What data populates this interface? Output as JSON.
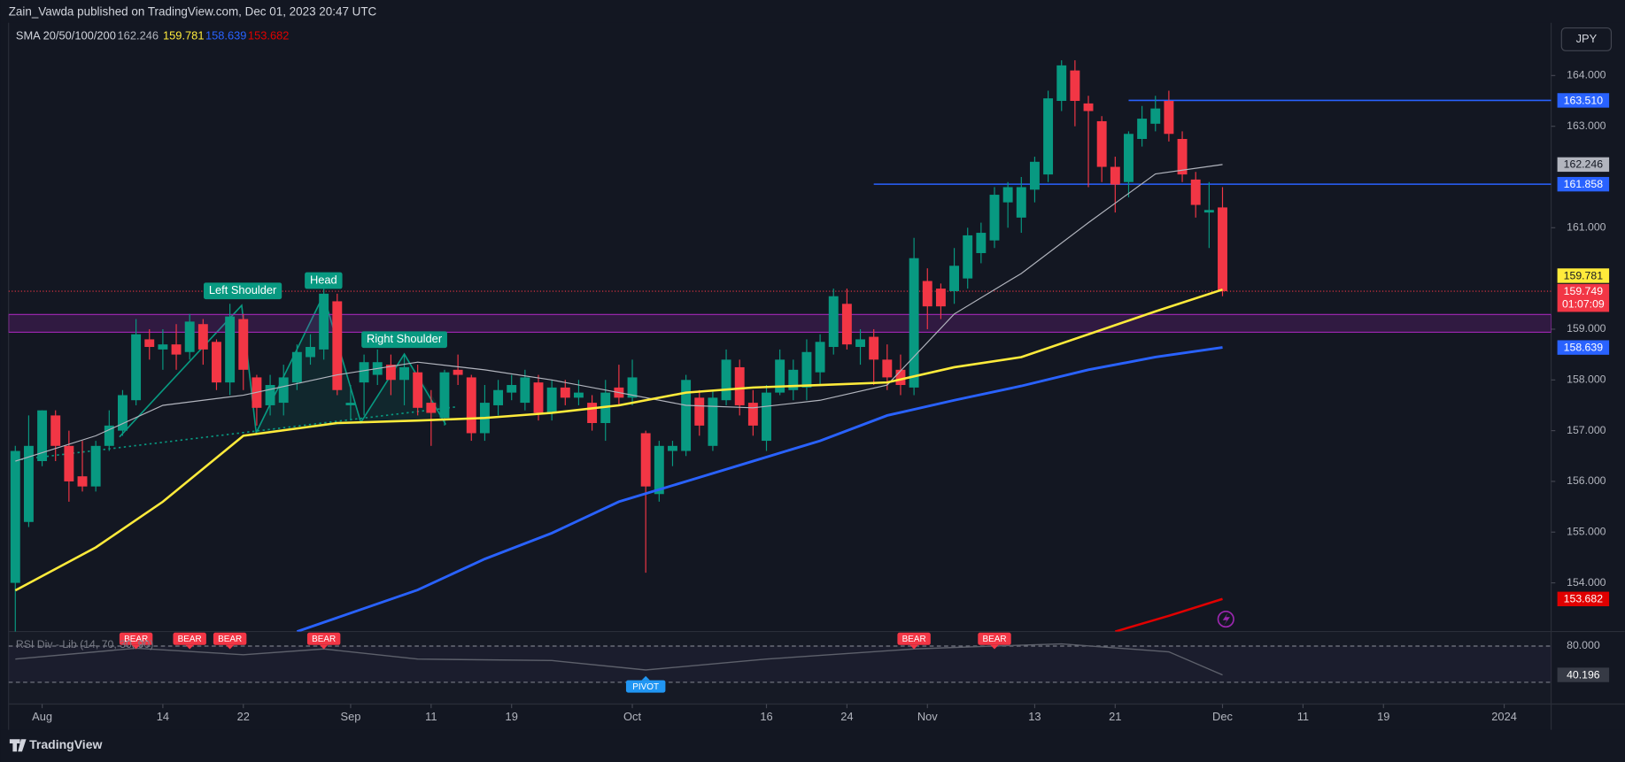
{
  "header": {
    "publisher": "Zain_Vawda published on TradingView.com, Dec 01, 2023 20:47 UTC",
    "currency": "JPY",
    "footer": "TradingView"
  },
  "chart_data": {
    "type": "candlestick",
    "indicator_label": "SMA 20/50/100/200",
    "up_color": "#089981",
    "down_color": "#f23645",
    "x": [
      "2023-07-28",
      "2023-07-31",
      "2023-08-01",
      "2023-08-02",
      "2023-08-03",
      "2023-08-04",
      "2023-08-07",
      "2023-08-08",
      "2023-08-09",
      "2023-08-10",
      "2023-08-11",
      "2023-08-14",
      "2023-08-15",
      "2023-08-16",
      "2023-08-17",
      "2023-08-18",
      "2023-08-21",
      "2023-08-22",
      "2023-08-23",
      "2023-08-24",
      "2023-08-25",
      "2023-08-28",
      "2023-08-29",
      "2023-08-30",
      "2023-08-31",
      "2023-09-01",
      "2023-09-04",
      "2023-09-05",
      "2023-09-06",
      "2023-09-07",
      "2023-09-08",
      "2023-09-11",
      "2023-09-12",
      "2023-09-13",
      "2023-09-14",
      "2023-09-15",
      "2023-09-18",
      "2023-09-19",
      "2023-09-20",
      "2023-09-21",
      "2023-09-22",
      "2023-09-25",
      "2023-09-26",
      "2023-09-27",
      "2023-09-28",
      "2023-09-29",
      "2023-10-02",
      "2023-10-03",
      "2023-10-04",
      "2023-10-05",
      "2023-10-06",
      "2023-10-09",
      "2023-10-10",
      "2023-10-11",
      "2023-10-12",
      "2023-10-13",
      "2023-10-16",
      "2023-10-17",
      "2023-10-18",
      "2023-10-19",
      "2023-10-20",
      "2023-10-23",
      "2023-10-24",
      "2023-10-25",
      "2023-10-26",
      "2023-10-27",
      "2023-10-30",
      "2023-10-31",
      "2023-11-01",
      "2023-11-02",
      "2023-11-03",
      "2023-11-06",
      "2023-11-07",
      "2023-11-08",
      "2023-11-09",
      "2023-11-10",
      "2023-11-13",
      "2023-11-14",
      "2023-11-15",
      "2023-11-16",
      "2023-11-17",
      "2023-11-20",
      "2023-11-21",
      "2023-11-22",
      "2023-11-23",
      "2023-11-24",
      "2023-11-27",
      "2023-11-28",
      "2023-11-29",
      "2023-11-30",
      "2023-12-01"
    ],
    "open": [
      154.0,
      155.2,
      156.4,
      157.3,
      156.7,
      156.1,
      155.9,
      156.7,
      157.0,
      157.6,
      158.8,
      158.6,
      158.7,
      158.55,
      159.1,
      158.75,
      157.95,
      159.2,
      158.05,
      157.5,
      157.55,
      157.95,
      158.45,
      158.6,
      159.55,
      157.5,
      157.95,
      158.1,
      158.3,
      158.0,
      158.15,
      157.55,
      157.25,
      158.2,
      158.05,
      156.95,
      157.5,
      157.75,
      157.55,
      157.95,
      157.35,
      157.85,
      157.65,
      157.55,
      157.15,
      157.85,
      157.65,
      156.95,
      155.75,
      156.6,
      156.6,
      157.65,
      156.7,
      157.6,
      158.25,
      157.55,
      156.8,
      157.75,
      157.8,
      157.85,
      158.15,
      158.65,
      159.5,
      158.65,
      158.85,
      158.4,
      158.2,
      157.85,
      159.95,
      159.8,
      159.75,
      160.0,
      160.5,
      160.75,
      161.5,
      161.2,
      161.75,
      162.05,
      163.5,
      164.1,
      163.45,
      163.1,
      162.2,
      161.9,
      162.75,
      163.05,
      163.5,
      162.75,
      161.95,
      161.3,
      161.4
    ],
    "high": [
      156.7,
      157.3,
      157.4,
      157.4,
      157.0,
      156.8,
      156.8,
      157.4,
      157.8,
      159.2,
      159.0,
      159.0,
      159.1,
      159.3,
      159.2,
      158.8,
      159.5,
      159.3,
      158.1,
      158.1,
      158.3,
      158.7,
      158.9,
      159.8,
      159.7,
      157.9,
      158.5,
      158.6,
      158.5,
      158.5,
      158.3,
      157.8,
      158.2,
      158.5,
      158.1,
      157.9,
      158.0,
      158.1,
      158.2,
      158.1,
      158.0,
      158.0,
      158.0,
      157.7,
      158.0,
      158.3,
      158.4,
      157.0,
      156.8,
      156.8,
      158.1,
      157.8,
      157.8,
      158.6,
      158.4,
      157.8,
      157.9,
      158.6,
      158.4,
      158.8,
      158.9,
      159.8,
      159.8,
      159.0,
      159.0,
      158.7,
      158.5,
      160.8,
      160.2,
      159.9,
      160.6,
      161.0,
      161.1,
      161.8,
      161.9,
      162.0,
      162.4,
      163.7,
      164.3,
      164.3,
      163.6,
      163.2,
      162.4,
      162.9,
      163.4,
      163.6,
      163.7,
      162.9,
      162.1,
      161.9,
      161.8
    ],
    "low": [
      153.0,
      155.1,
      156.3,
      156.4,
      155.6,
      155.8,
      155.8,
      156.6,
      156.9,
      157.5,
      158.4,
      158.2,
      158.2,
      158.4,
      158.3,
      157.8,
      157.7,
      157.8,
      157.1,
      157.3,
      157.3,
      157.8,
      158.3,
      158.4,
      157.7,
      157.2,
      157.3,
      157.9,
      157.7,
      157.5,
      157.3,
      156.7,
      157.1,
      157.9,
      156.8,
      156.8,
      157.3,
      157.6,
      157.4,
      157.2,
      157.2,
      157.5,
      157.5,
      157.0,
      156.8,
      157.5,
      157.5,
      154.2,
      155.6,
      156.3,
      156.5,
      156.9,
      156.6,
      157.5,
      157.3,
      156.9,
      156.6,
      157.7,
      157.6,
      157.6,
      157.9,
      158.5,
      158.6,
      158.3,
      157.9,
      157.8,
      157.7,
      157.7,
      159.0,
      159.2,
      159.5,
      159.8,
      160.3,
      160.6,
      161.0,
      160.9,
      161.5,
      161.9,
      163.3,
      163.0,
      161.8,
      161.9,
      161.3,
      161.6,
      162.6,
      162.9,
      162.7,
      161.9,
      161.2,
      160.6,
      159.65
    ],
    "close": [
      156.6,
      156.7,
      157.4,
      156.7,
      156.0,
      155.9,
      156.7,
      157.1,
      157.7,
      158.9,
      158.65,
      158.7,
      158.5,
      159.15,
      158.6,
      157.95,
      159.25,
      158.2,
      157.45,
      157.9,
      158.05,
      158.55,
      158.65,
      159.7,
      157.8,
      157.55,
      158.35,
      158.35,
      158.0,
      158.25,
      157.45,
      157.35,
      158.15,
      158.1,
      156.95,
      157.55,
      157.8,
      157.9,
      158.05,
      157.35,
      157.85,
      157.65,
      157.75,
      157.15,
      157.75,
      157.65,
      158.05,
      155.9,
      156.7,
      156.7,
      158.0,
      157.1,
      157.65,
      158.4,
      157.5,
      157.1,
      157.75,
      158.4,
      158.2,
      158.55,
      158.75,
      159.65,
      158.7,
      158.8,
      158.4,
      158.05,
      157.9,
      160.4,
      159.45,
      159.45,
      160.25,
      160.85,
      160.9,
      161.65,
      161.8,
      161.8,
      162.3,
      163.55,
      164.2,
      163.5,
      163.3,
      162.2,
      161.85,
      162.85,
      163.15,
      163.35,
      162.85,
      162.05,
      161.45,
      161.35,
      159.749
    ],
    "xlim": [
      "2023-07-28",
      "2024-01-04"
    ],
    "xticks": [
      {
        "value": "2023-08-01",
        "label": "Aug"
      },
      {
        "value": "2023-08-14",
        "label": "14"
      },
      {
        "value": "2023-08-22",
        "label": "22"
      },
      {
        "value": "2023-09-01",
        "label": "Sep"
      },
      {
        "value": "2023-09-11",
        "label": "11"
      },
      {
        "value": "2023-09-19",
        "label": "19"
      },
      {
        "value": "2023-10-02",
        "label": "Oct"
      },
      {
        "value": "2023-10-16",
        "label": "16"
      },
      {
        "value": "2023-10-24",
        "label": "24"
      },
      {
        "value": "2023-11-01",
        "label": "Nov"
      },
      {
        "value": "2023-11-13",
        "label": "13"
      },
      {
        "value": "2023-11-21",
        "label": "21"
      },
      {
        "value": "2023-12-01",
        "label": "Dec"
      },
      {
        "value": "2023-12-11",
        "label": "11"
      },
      {
        "value": "2023-12-19",
        "label": "19"
      },
      {
        "value": "2024-01-01",
        "label": "2024"
      }
    ],
    "ylim": [
      153.04,
      165.04
    ],
    "yticks": [
      {
        "value": 164,
        "label": "164.000"
      },
      {
        "value": 163,
        "label": "163.000"
      },
      {
        "value": 161,
        "label": "161.000"
      },
      {
        "value": 159,
        "label": "159.000"
      },
      {
        "value": 158,
        "label": "158.000"
      },
      {
        "value": 157,
        "label": "157.000"
      },
      {
        "value": 156,
        "label": "156.000"
      },
      {
        "value": 155,
        "label": "155.000"
      },
      {
        "value": 154,
        "label": "154.000"
      }
    ],
    "sma": [
      {
        "color": "#b2b5be",
        "width": 1,
        "x": [
          "2023-07-28",
          "2023-08-07",
          "2023-08-14",
          "2023-08-22",
          "2023-08-31",
          "2023-09-08",
          "2023-09-15",
          "2023-09-22",
          "2023-09-29",
          "2023-10-06",
          "2023-10-13",
          "2023-10-20",
          "2023-10-27",
          "2023-11-03",
          "2023-11-10",
          "2023-11-17",
          "2023-11-24",
          "2023-12-01"
        ],
        "values": [
          156.4,
          156.9,
          157.5,
          157.7,
          158.1,
          158.35,
          158.2,
          158.0,
          157.75,
          157.5,
          157.45,
          157.6,
          157.9,
          159.3,
          160.1,
          161.1,
          162.06,
          162.246
        ]
      },
      {
        "color": "#ffeb3b",
        "width": 2.2,
        "x": [
          "2023-07-28",
          "2023-08-07",
          "2023-08-14",
          "2023-08-22",
          "2023-08-31",
          "2023-09-08",
          "2023-09-15",
          "2023-09-22",
          "2023-09-29",
          "2023-10-06",
          "2023-10-13",
          "2023-10-20",
          "2023-10-27",
          "2023-11-03",
          "2023-11-10",
          "2023-11-17",
          "2023-11-24",
          "2023-12-01"
        ],
        "values": [
          153.85,
          154.7,
          155.6,
          156.9,
          157.15,
          157.2,
          157.25,
          157.35,
          157.5,
          157.75,
          157.85,
          157.9,
          157.95,
          158.25,
          158.45,
          158.9,
          159.35,
          159.781
        ]
      },
      {
        "color": "#2962ff",
        "width": 2.5,
        "x": [
          "2023-08-28",
          "2023-09-08",
          "2023-09-15",
          "2023-09-22",
          "2023-09-29",
          "2023-10-06",
          "2023-10-13",
          "2023-10-20",
          "2023-10-27",
          "2023-11-03",
          "2023-11-10",
          "2023-11-17",
          "2023-11-24",
          "2023-12-01"
        ],
        "values": [
          153.04,
          153.86,
          154.47,
          154.98,
          155.6,
          156.0,
          156.4,
          156.8,
          157.3,
          157.6,
          157.88,
          158.2,
          158.45,
          158.639
        ]
      },
      {
        "color": "#e00000",
        "width": 2.2,
        "x": [
          "2023-11-21",
          "2023-11-27",
          "2023-12-01"
        ],
        "values": [
          153.04,
          153.35,
          153.682
        ]
      }
    ],
    "hlines": [
      {
        "value": 163.51,
        "label": "163.510",
        "color": "#2962ff",
        "from": "2023-11-22"
      },
      {
        "value": 161.858,
        "color": "#2962ff",
        "from": "2023-10-26"
      }
    ],
    "last_price": {
      "value": 159.749,
      "countdown": "01:07:09",
      "color": "#f23645"
    },
    "zone": {
      "low": 158.94,
      "high": 159.29,
      "color": "#9c27b0"
    },
    "annotations": [
      "Left Shoulder",
      "Head",
      "Right Shoulder"
    ],
    "rsi": {
      "title": "RSI Div - Lib (14, 70, 30, 90)",
      "ylim": [
        0,
        100
      ],
      "levels": [
        80,
        30
      ],
      "ticks": [
        {
          "value": 80,
          "label": "80.000"
        }
      ],
      "color": "#5d606b",
      "x": [
        "2023-07-28",
        "2023-08-10",
        "2023-08-22",
        "2023-08-30",
        "2023-09-08",
        "2023-09-22",
        "2023-10-03",
        "2023-10-16",
        "2023-10-31",
        "2023-11-08",
        "2023-11-15",
        "2023-11-27",
        "2023-12-01"
      ],
      "values": [
        62,
        77,
        68,
        76,
        62,
        60,
        47,
        62,
        76,
        80,
        83,
        72,
        40.196
      ],
      "signals": [
        {
          "x": "2023-08-10",
          "label": "BEAR",
          "position": "top",
          "color": "#f23645"
        },
        {
          "x": "2023-08-16",
          "label": "BEAR",
          "position": "top",
          "color": "#f23645"
        },
        {
          "x": "2023-08-21",
          "label": "BEAR",
          "position": "top",
          "color": "#f23645"
        },
        {
          "x": "2023-08-30",
          "label": "BEAR",
          "position": "top",
          "color": "#f23645"
        },
        {
          "x": "2023-10-31",
          "label": "BEAR",
          "position": "top",
          "color": "#f23645"
        },
        {
          "x": "2023-11-08",
          "label": "BEAR",
          "position": "top",
          "color": "#f23645"
        },
        {
          "x": "2023-10-03",
          "label": "PIVOT",
          "position": "bottom",
          "color": "#2196f3"
        }
      ]
    }
  }
}
